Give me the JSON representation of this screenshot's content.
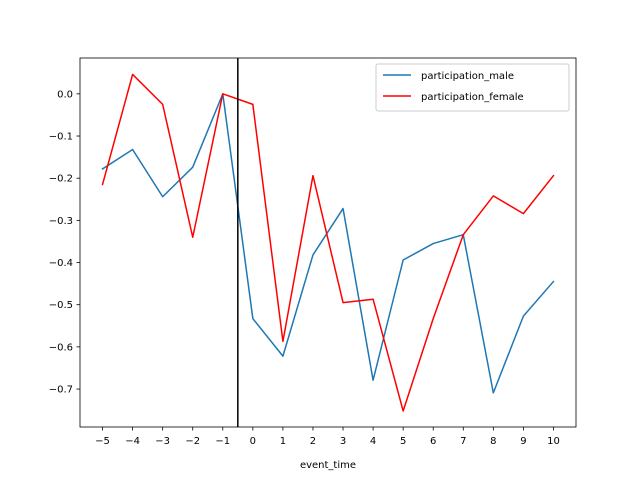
{
  "chart_data": {
    "type": "line",
    "xlabel": "event_time",
    "ylabel": "",
    "title": "",
    "xlim": [
      -5.75,
      10.75
    ],
    "ylim": [
      -0.79,
      0.085
    ],
    "x_ticks": [
      -5,
      -4,
      -3,
      -2,
      -1,
      0,
      1,
      2,
      3,
      4,
      5,
      6,
      7,
      8,
      9,
      10
    ],
    "x_tick_labels": [
      "−5",
      "−4",
      "−3",
      "−2",
      "−1",
      "0",
      "1",
      "2",
      "3",
      "4",
      "5",
      "6",
      "7",
      "8",
      "9",
      "10"
    ],
    "y_ticks": [
      0.0,
      -0.1,
      -0.2,
      -0.3,
      -0.4,
      -0.5,
      -0.6,
      -0.7
    ],
    "y_tick_labels": [
      "0.0",
      "−0.1",
      "−0.2",
      "−0.3",
      "−0.4",
      "−0.5",
      "−0.6",
      "−0.7"
    ],
    "vertical_line_x": -0.5,
    "grid": false,
    "legend_position": "top-right",
    "x": [
      -5,
      -4,
      -3,
      -2,
      -1,
      0,
      1,
      2,
      3,
      4,
      5,
      6,
      7,
      8,
      9,
      10
    ],
    "series": [
      {
        "name": "participation_male",
        "color": "#1f77b4",
        "values": [
          -0.178,
          -0.132,
          -0.244,
          -0.174,
          0.0,
          -0.533,
          -0.622,
          -0.382,
          -0.272,
          -0.679,
          -0.394,
          -0.355,
          -0.334,
          -0.709,
          -0.527,
          -0.445
        ]
      },
      {
        "name": "participation_female",
        "color": "#ff0000",
        "values": [
          -0.215,
          0.046,
          -0.025,
          -0.34,
          0.0,
          -0.025,
          -0.587,
          -0.194,
          -0.495,
          -0.487,
          -0.752,
          -0.533,
          -0.334,
          -0.242,
          -0.284,
          -0.194
        ]
      }
    ]
  }
}
